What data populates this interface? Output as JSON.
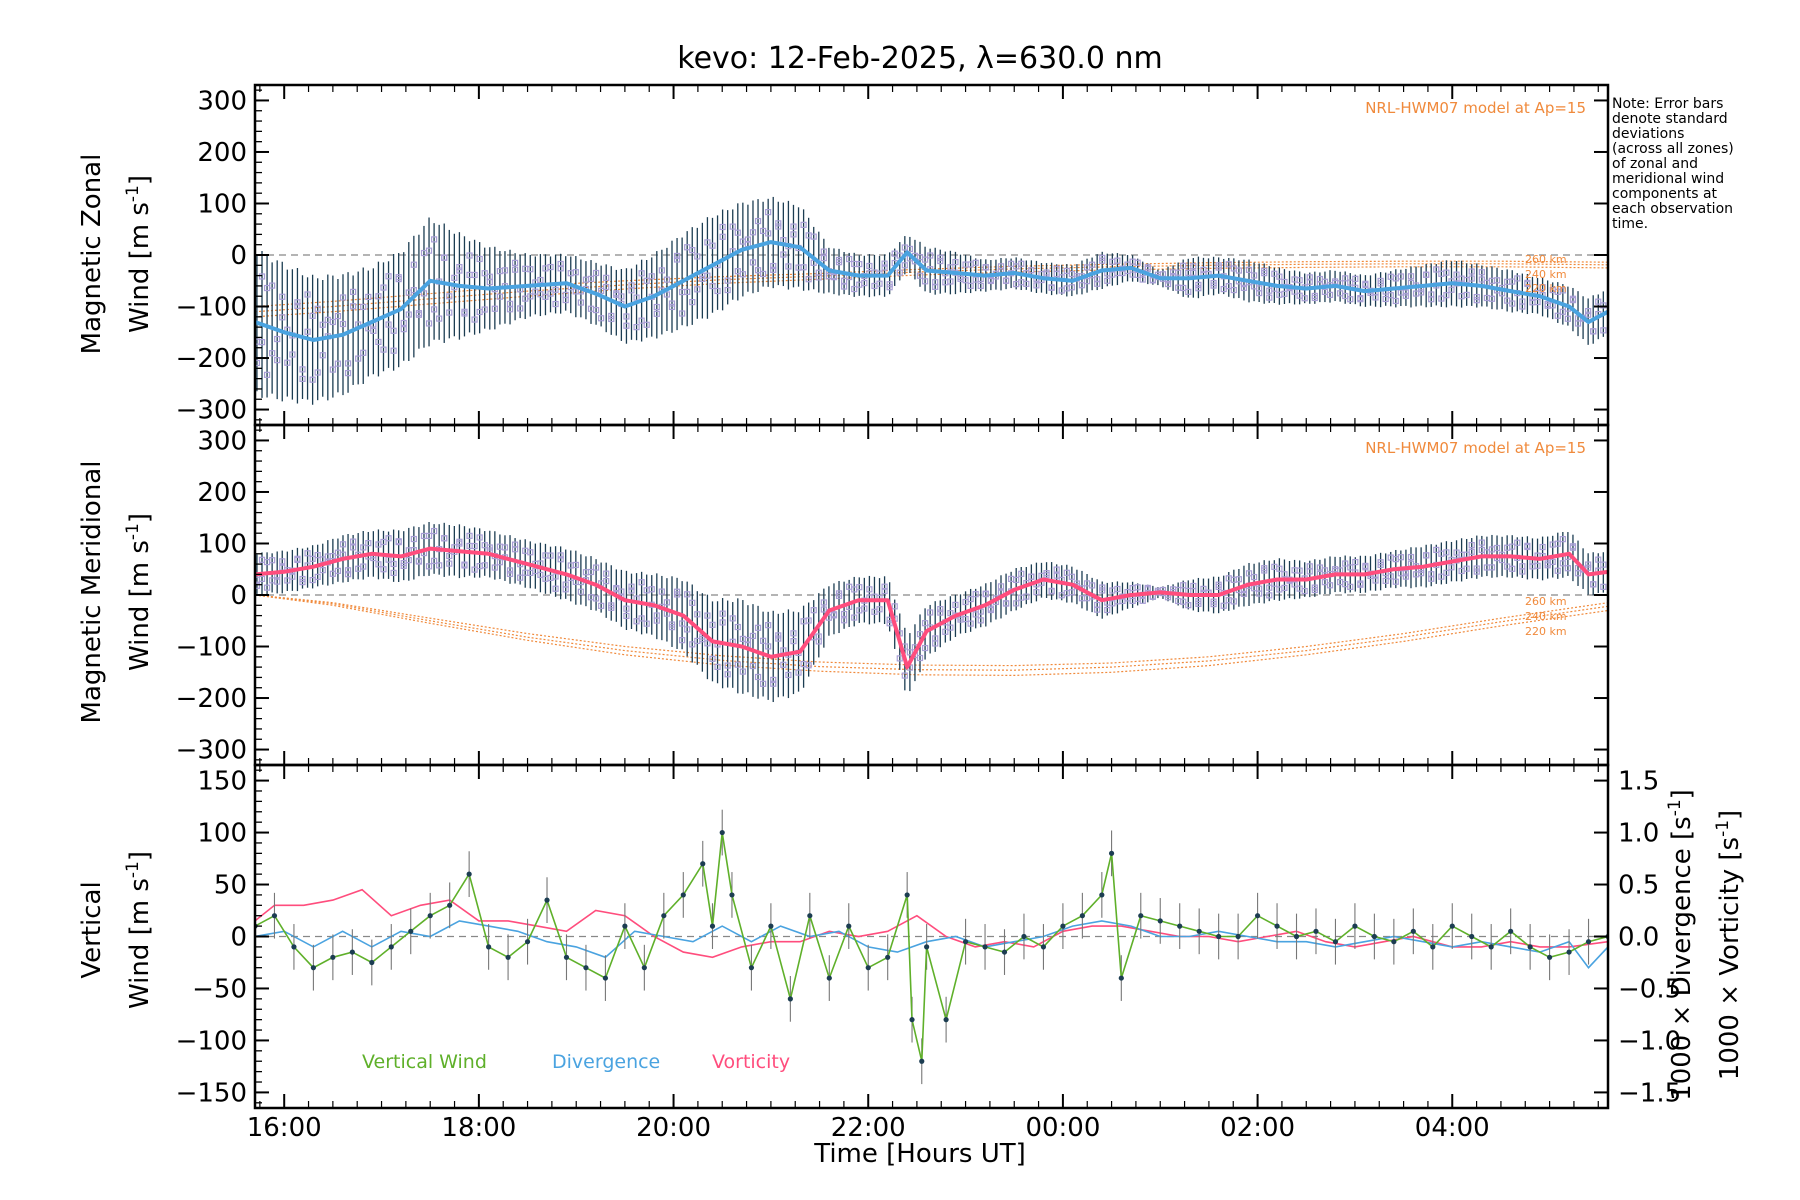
{
  "colors": {
    "frame": "#000000",
    "model": "#f08a3c",
    "zonal_mean": "#4aa3e0",
    "meridional_mean": "#ff4d7d",
    "error_bars": "#1c3d52",
    "scatter": "#a99fd6",
    "vertical": "#5fb02a",
    "divergence": "#4aa3e0",
    "vorticity": "#ff4d7d",
    "zero_line": "#888888"
  },
  "chart_data": {
    "type": "line",
    "title": "kevo: 12-Feb-2025, λ=630.0 nm",
    "xlabel": "Time [Hours UT]",
    "x_range_hours": [
      15.7,
      29.6
    ],
    "x_ticks": [
      {
        "hour": 16,
        "label": "16:00"
      },
      {
        "hour": 18,
        "label": "18:00"
      },
      {
        "hour": 20,
        "label": "20:00"
      },
      {
        "hour": 22,
        "label": "22:00"
      },
      {
        "hour": 24,
        "label": "00:00"
      },
      {
        "hour": 26,
        "label": "02:00"
      },
      {
        "hour": 28,
        "label": "04:00"
      }
    ],
    "note": [
      "Note: Error bars",
      "denote standard",
      "deviations",
      "(across all zones)",
      "of zonal and",
      "meridional wind",
      "components at",
      "each observation",
      "time."
    ],
    "panels": [
      {
        "id": "zonal",
        "ylabel_line1": "Magnetic Zonal",
        "ylabel_line2": "Wind [m s",
        "ylabel_sup": "-1",
        "ylabel_close": "]",
        "ylim": [
          -330,
          330
        ],
        "y_ticks": [
          300,
          200,
          100,
          0,
          -100,
          -200,
          -300
        ],
        "model_label": "NRL-HWM07 model at Ap=15",
        "altitude_labels": [
          "260 km",
          "240 km",
          "220 km"
        ],
        "mean": {
          "x": [
            15.7,
            16.0,
            16.3,
            16.6,
            16.9,
            17.2,
            17.5,
            17.8,
            18.1,
            18.5,
            18.9,
            19.2,
            19.5,
            19.8,
            20.1,
            20.4,
            20.7,
            21.0,
            21.3,
            21.6,
            21.9,
            22.2,
            22.4,
            22.6,
            22.9,
            23.2,
            23.5,
            23.8,
            24.1,
            24.4,
            24.7,
            25.0,
            25.3,
            25.6,
            25.9,
            26.2,
            26.5,
            26.8,
            27.1,
            27.4,
            27.7,
            28.0,
            28.3,
            28.6,
            28.9,
            29.2,
            29.4,
            29.6
          ],
          "y": [
            -130,
            -150,
            -165,
            -155,
            -130,
            -105,
            -50,
            -60,
            -65,
            -60,
            -55,
            -75,
            -100,
            -80,
            -50,
            -20,
            10,
            25,
            15,
            -30,
            -40,
            -40,
            5,
            -30,
            -35,
            -40,
            -35,
            -45,
            -50,
            -30,
            -25,
            -45,
            -45,
            -40,
            -50,
            -60,
            -65,
            -60,
            -70,
            -65,
            -60,
            -55,
            -60,
            -70,
            -80,
            -100,
            -130,
            -110
          ],
          "sd": [
            140,
            130,
            120,
            115,
            105,
            110,
            120,
            100,
            80,
            60,
            55,
            60,
            70,
            80,
            90,
            95,
            90,
            85,
            80,
            45,
            40,
            40,
            35,
            45,
            40,
            30,
            30,
            30,
            30,
            35,
            25,
            15,
            40,
            35,
            40,
            35,
            30,
            30,
            30,
            35,
            40,
            45,
            40,
            40,
            35,
            40,
            45,
            45
          ]
        },
        "model": {
          "x": [
            15.7,
            16.5,
            17.5,
            18.5,
            19.5,
            20.5,
            21.5,
            22.5,
            23.5,
            24.5,
            25.5,
            26.5,
            27.5,
            28.5,
            29.6
          ],
          "y260": [
            -100,
            -90,
            -75,
            -60,
            -50,
            -42,
            -36,
            -28,
            -22,
            -18,
            -15,
            -13,
            -12,
            -12,
            -14
          ],
          "y240": [
            -110,
            -100,
            -85,
            -70,
            -58,
            -48,
            -41,
            -33,
            -27,
            -23,
            -20,
            -18,
            -17,
            -17,
            -19
          ],
          "y220": [
            -120,
            -110,
            -95,
            -80,
            -66,
            -55,
            -47,
            -39,
            -33,
            -29,
            -26,
            -24,
            -23,
            -23,
            -25
          ]
        }
      },
      {
        "id": "meridional",
        "ylabel_line1": "Magnetic Meridional",
        "ylabel_line2": "Wind [m s",
        "ylabel_sup": "-1",
        "ylabel_close": "]",
        "ylim": [
          -330,
          330
        ],
        "y_ticks": [
          300,
          200,
          100,
          0,
          -100,
          -200,
          -300
        ],
        "model_label": "NRL-HWM07 model at Ap=15",
        "altitude_labels": [
          "260 km",
          "240 km",
          "220 km"
        ],
        "mean": {
          "x": [
            15.7,
            16.0,
            16.3,
            16.6,
            16.9,
            17.2,
            17.5,
            17.8,
            18.1,
            18.5,
            18.9,
            19.2,
            19.5,
            19.8,
            20.1,
            20.4,
            20.7,
            21.0,
            21.3,
            21.6,
            21.9,
            22.2,
            22.4,
            22.6,
            22.9,
            23.2,
            23.5,
            23.8,
            24.1,
            24.4,
            24.7,
            25.0,
            25.3,
            25.6,
            25.9,
            26.2,
            26.5,
            26.8,
            27.1,
            27.4,
            27.7,
            28.0,
            28.3,
            28.6,
            28.9,
            29.2,
            29.4,
            29.6
          ],
          "y": [
            40,
            45,
            55,
            70,
            80,
            75,
            90,
            85,
            80,
            60,
            40,
            20,
            -10,
            -20,
            -40,
            -90,
            -100,
            -120,
            -110,
            -30,
            -10,
            -10,
            -140,
            -70,
            -40,
            -20,
            10,
            30,
            20,
            -10,
            0,
            5,
            0,
            0,
            20,
            30,
            30,
            40,
            40,
            50,
            55,
            65,
            75,
            75,
            70,
            80,
            40,
            45
          ],
          "sd": [
            40,
            40,
            40,
            45,
            45,
            50,
            50,
            50,
            45,
            45,
            50,
            50,
            55,
            60,
            70,
            80,
            90,
            85,
            80,
            50,
            45,
            45,
            60,
            50,
            40,
            40,
            40,
            35,
            35,
            35,
            25,
            10,
            30,
            35,
            40,
            40,
            35,
            35,
            35,
            35,
            40,
            40,
            40,
            40,
            40,
            45,
            40,
            40
          ]
        },
        "model": {
          "x": [
            15.7,
            16.5,
            17.5,
            18.5,
            19.5,
            20.5,
            21.5,
            22.5,
            23.5,
            24.5,
            25.5,
            26.5,
            27.5,
            28.5,
            29.6
          ],
          "y260": [
            0,
            -15,
            -45,
            -75,
            -100,
            -118,
            -130,
            -136,
            -137,
            -132,
            -120,
            -100,
            -75,
            -45,
            -15
          ],
          "y240": [
            0,
            -17,
            -50,
            -82,
            -108,
            -127,
            -139,
            -145,
            -146,
            -140,
            -128,
            -108,
            -82,
            -52,
            -22
          ],
          "y220": [
            0,
            -20,
            -55,
            -88,
            -116,
            -136,
            -148,
            -155,
            -156,
            -150,
            -137,
            -116,
            -90,
            -60,
            -30
          ]
        }
      },
      {
        "id": "vertical",
        "ylabel_line1": "Vertical",
        "ylabel_line2": "Wind [m s",
        "ylabel_sup": "-1",
        "ylabel_close": "]",
        "ylim": [
          -165,
          165
        ],
        "y_ticks": [
          150,
          100,
          50,
          0,
          -50,
          -100,
          -150
        ],
        "y2lim": [
          -1.65,
          1.65
        ],
        "y2_ticks": [
          {
            "value": 1.5,
            "label": "1.5"
          },
          {
            "value": 1.0,
            "label": "1.0"
          },
          {
            "value": 0.5,
            "label": "0.5"
          },
          {
            "value": 0.0,
            "label": "0.0"
          },
          {
            "value": -0.5,
            "label": "−0.5"
          },
          {
            "value": -1.0,
            "label": "−1.0"
          },
          {
            "value": -1.5,
            "label": "−1.5"
          }
        ],
        "y2_label_div": "1000 × Divergence [s",
        "y2_label_vor": "1000 × Vorticity [s",
        "legend": [
          "Vertical Wind",
          "Divergence",
          "Vorticity"
        ],
        "vertical": {
          "x": [
            15.7,
            15.9,
            16.1,
            16.3,
            16.5,
            16.7,
            16.9,
            17.1,
            17.3,
            17.5,
            17.7,
            17.9,
            18.1,
            18.3,
            18.5,
            18.7,
            18.9,
            19.1,
            19.3,
            19.5,
            19.7,
            19.9,
            20.1,
            20.3,
            20.4,
            20.5,
            20.6,
            20.8,
            21.0,
            21.2,
            21.4,
            21.6,
            21.8,
            22.0,
            22.2,
            22.4,
            22.45,
            22.55,
            22.6,
            22.8,
            23.0,
            23.2,
            23.4,
            23.6,
            23.8,
            24.0,
            24.2,
            24.4,
            24.5,
            24.6,
            24.8,
            25.0,
            25.2,
            25.4,
            25.6,
            25.8,
            26.0,
            26.2,
            26.4,
            26.6,
            26.8,
            27.0,
            27.2,
            27.4,
            27.6,
            27.8,
            28.0,
            28.2,
            28.4,
            28.6,
            28.8,
            29.0,
            29.2,
            29.4,
            29.6
          ],
          "y": [
            10,
            20,
            -10,
            -30,
            -20,
            -15,
            -25,
            -10,
            5,
            20,
            30,
            60,
            -10,
            -20,
            -5,
            35,
            -20,
            -30,
            -40,
            10,
            -30,
            20,
            40,
            70,
            10,
            100,
            40,
            -30,
            10,
            -60,
            20,
            -40,
            10,
            -30,
            -20,
            40,
            -80,
            -120,
            -10,
            -80,
            -5,
            -10,
            -15,
            0,
            -10,
            10,
            20,
            40,
            80,
            -40,
            20,
            15,
            10,
            5,
            0,
            0,
            20,
            10,
            0,
            5,
            -5,
            10,
            0,
            -5,
            5,
            -10,
            10,
            0,
            -10,
            5,
            -10,
            -20,
            -15,
            -5,
            0
          ]
        },
        "divergence": {
          "x": [
            15.7,
            16.0,
            16.3,
            16.6,
            16.9,
            17.2,
            17.5,
            17.8,
            18.1,
            18.4,
            18.7,
            19.0,
            19.3,
            19.6,
            19.9,
            20.2,
            20.5,
            20.8,
            21.1,
            21.4,
            21.7,
            22.0,
            22.3,
            22.6,
            22.9,
            23.2,
            23.5,
            23.8,
            24.1,
            24.4,
            24.7,
            25.0,
            25.3,
            25.6,
            25.9,
            26.2,
            26.5,
            26.8,
            27.1,
            27.4,
            27.7,
            28.0,
            28.3,
            28.6,
            28.9,
            29.2,
            29.4,
            29.6
          ],
          "y": [
            0.0,
            0.05,
            -0.1,
            0.05,
            -0.1,
            0.05,
            0.0,
            0.15,
            0.1,
            0.05,
            -0.05,
            -0.1,
            -0.2,
            0.05,
            0.0,
            -0.05,
            0.1,
            -0.05,
            0.1,
            0.0,
            0.05,
            -0.1,
            -0.15,
            -0.05,
            0.0,
            -0.1,
            -0.05,
            0.0,
            0.1,
            0.15,
            0.1,
            0.0,
            0.0,
            0.05,
            0.0,
            -0.05,
            -0.05,
            -0.1,
            -0.05,
            0.0,
            -0.05,
            -0.1,
            -0.05,
            -0.1,
            -0.15,
            -0.05,
            -0.3,
            -0.1
          ]
        },
        "vorticity": {
          "x": [
            15.7,
            15.9,
            16.2,
            16.5,
            16.8,
            17.1,
            17.4,
            17.7,
            18.0,
            18.3,
            18.6,
            18.9,
            19.2,
            19.5,
            19.8,
            20.1,
            20.4,
            20.7,
            21.0,
            21.3,
            21.6,
            21.9,
            22.2,
            22.5,
            22.8,
            23.1,
            23.4,
            23.7,
            24.0,
            24.3,
            24.6,
            24.9,
            25.2,
            25.5,
            25.8,
            26.1,
            26.4,
            26.7,
            27.0,
            27.3,
            27.6,
            28.0,
            28.3,
            28.6,
            28.9,
            29.2,
            29.6
          ],
          "y": [
            0.15,
            0.3,
            0.3,
            0.35,
            0.45,
            0.2,
            0.3,
            0.35,
            0.15,
            0.15,
            0.1,
            0.05,
            0.25,
            0.2,
            0.0,
            -0.15,
            -0.2,
            -0.1,
            -0.05,
            -0.05,
            0.05,
            0.0,
            0.05,
            0.2,
            0.0,
            -0.1,
            -0.05,
            -0.1,
            0.05,
            0.1,
            0.1,
            0.05,
            0.0,
            0.0,
            -0.05,
            0.0,
            0.05,
            -0.05,
            -0.1,
            -0.05,
            0.0,
            -0.1,
            -0.1,
            -0.05,
            -0.1,
            -0.1,
            -0.05
          ]
        }
      }
    ]
  }
}
